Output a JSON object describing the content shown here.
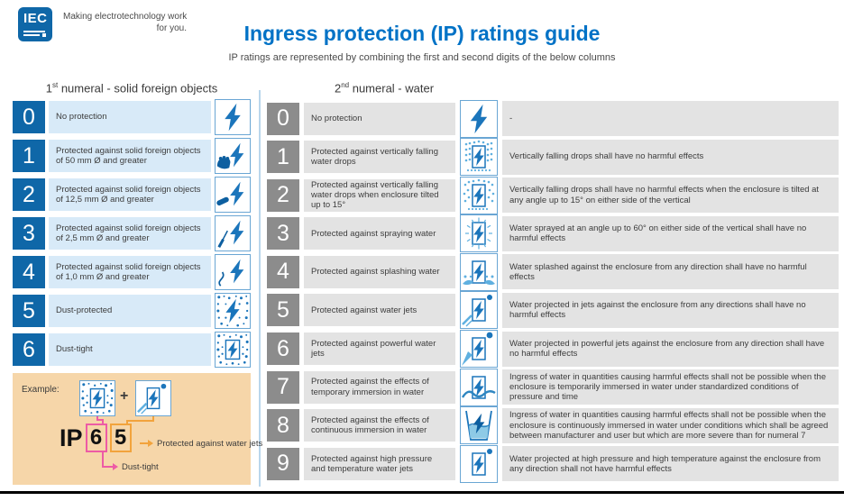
{
  "header": {
    "logo_text": "IEC",
    "tagline_line1": "Making electrotechnology work",
    "tagline_line2": "for you.",
    "title": "Ingress protection (IP) ratings guide",
    "subtitle": "IP ratings are represented by combining the first and second digits of the below columns"
  },
  "colors": {
    "brand_blue": "#0f67a8",
    "title_blue": "#0072c6",
    "bolt_blue": "#1b75bb",
    "light_blue_strip": "#d8eaf8",
    "gray_badge": "#8c8c8c",
    "gray_strip": "#e3e3e3",
    "icon_border": "#6aa6d4",
    "divider": "#b9d6ec",
    "example_bg": "#f6d6a9",
    "pink": "#ed5ba5",
    "orange": "#f2a33c"
  },
  "solid_column": {
    "heading_num": "1",
    "heading_sup": "st",
    "heading_rest": " numeral - solid foreign objects",
    "rows": [
      {
        "digit": "0",
        "label": "No protection",
        "icon": "lightning-bolt"
      },
      {
        "digit": "1",
        "label": "Protected against solid foreign objects of 50 mm Ø and greater",
        "icon": "hand-lightning"
      },
      {
        "digit": "2",
        "label": "Protected against solid foreign objects of 12,5 mm Ø and greater",
        "icon": "finger-lightning"
      },
      {
        "digit": "3",
        "label": "Protected against solid foreign objects of 2,5 mm Ø and greater",
        "icon": "tool-lightning"
      },
      {
        "digit": "4",
        "label": "Protected against solid foreign objects of 1,0 mm Ø and greater",
        "icon": "wire-lightning"
      },
      {
        "digit": "5",
        "label": "Dust-protected",
        "icon": "dust-protected"
      },
      {
        "digit": "6",
        "label": "Dust-tight",
        "icon": "dust-tight"
      }
    ]
  },
  "water_column": {
    "heading_num": "2",
    "heading_sup": "nd",
    "heading_rest": " numeral - water",
    "rows": [
      {
        "digit": "0",
        "label": "No protection",
        "icon": "lightning-bolt",
        "description": "-"
      },
      {
        "digit": "1",
        "label": "Protected against vertically falling water drops",
        "icon": "vertical-drops",
        "description": "Vertically falling drops shall have no harmful effects"
      },
      {
        "digit": "2",
        "label": "Protected against vertically falling water drops when enclosure tilted up to 15°",
        "icon": "tilted-drops",
        "description": "Vertically falling drops shall have no harmful effects when the enclosure is tilted at any angle up to 15° on either side of the vertical"
      },
      {
        "digit": "3",
        "label": "Protected against spraying water",
        "icon": "spray",
        "description": "Water sprayed at an angle up to 60° on either side of the vertical shall have no harmful effects"
      },
      {
        "digit": "4",
        "label": "Protected against splashing water",
        "icon": "splash",
        "description": "Water splashed against the enclosure from any direction shall have no harmful effects"
      },
      {
        "digit": "5",
        "label": "Protected against water jets",
        "icon": "water-jet",
        "description": "Water projected in jets against the enclosure from any directions shall have no harmful effects"
      },
      {
        "digit": "6",
        "label": "Protected against powerful water jets",
        "icon": "powerful-water-jet",
        "description": "Water projected in powerful jets against the enclosure from any direction shall have no harmful effects"
      },
      {
        "digit": "7",
        "label": "Protected against the effects of temporary immersion in water",
        "icon": "immersion",
        "description": "Ingress of water in quantities causing harmful effects shall not be possible when the enclosure is temporarily immersed in water under standardized conditions of pressure and time"
      },
      {
        "digit": "8",
        "label": "Protected against the effects of continuous immersion in water",
        "icon": "continuous-immersion-tank",
        "description": "Ingress of water in quantities causing harmful effects shall not be possible when the enclosure is continuously immersed in water under conditions which shall be agreed between manufacturer and user but which are more severe than for numeral 7"
      },
      {
        "digit": "9",
        "label": "Protected against high pressure and temperature water jets",
        "icon": "high-pressure-jet",
        "description": "Water projected at high pressure and high temperature against the enclosure from any direction shall not have harmful effects"
      }
    ]
  },
  "example": {
    "label": "Example:",
    "plus": "+",
    "icon1": "dust-tight",
    "icon2": "water-jet",
    "ip_prefix": "IP",
    "digit1": "6",
    "digit2": "5",
    "digit1_note": "Dust-tight",
    "digit2_note": "Protected against water jets"
  }
}
